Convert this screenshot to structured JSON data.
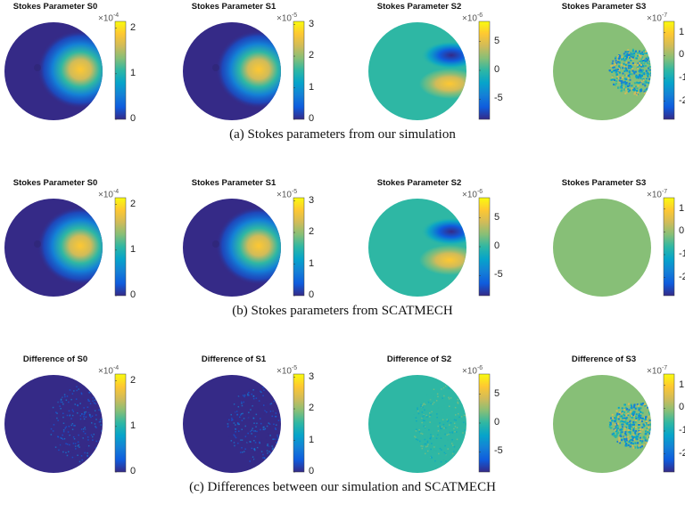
{
  "colormap": [
    "#352a87",
    "#0f5cdd",
    "#1481d6",
    "#06a4ca",
    "#2eb7a4",
    "#87bf77",
    "#d1bb59",
    "#fec832",
    "#f9fb0e"
  ],
  "rows": [
    {
      "caption": "(a)  Stokes parameters from our simulation",
      "panels": [
        {
          "title": "Stokes Parameter S0",
          "exponent": "-4",
          "range": [
            0,
            2.15
          ],
          "ticks": [
            "2",
            "1",
            "0"
          ],
          "tick_values": [
            2,
            1,
            0
          ],
          "pattern": "spot"
        },
        {
          "title": "Stokes Parameter S1",
          "exponent": "-5",
          "range": [
            0,
            3.1
          ],
          "ticks": [
            "3",
            "2",
            "1",
            "0"
          ],
          "tick_values": [
            3,
            2,
            1,
            0
          ],
          "pattern": "spot"
        },
        {
          "title": "Stokes Parameter S2",
          "exponent": "-6",
          "range": [
            -8.5,
            8.5
          ],
          "ticks": [
            "5",
            "0",
            "-5"
          ],
          "tick_values": [
            5,
            0,
            -5
          ],
          "pattern": "dipole"
        },
        {
          "title": "Stokes Parameter S3",
          "exponent": "-7",
          "range": [
            -2.8,
            1.5
          ],
          "ticks": [
            "1",
            "0",
            "-1",
            "-2"
          ],
          "tick_values": [
            1,
            0,
            -1,
            -2
          ],
          "pattern": "noise"
        }
      ]
    },
    {
      "caption": "(b)  Stokes parameters from SCATMECH",
      "panels": [
        {
          "title": "Stokes Parameter S0",
          "exponent": "-4",
          "range": [
            0,
            2.15
          ],
          "ticks": [
            "2",
            "1",
            "0"
          ],
          "tick_values": [
            2,
            1,
            0
          ],
          "pattern": "spot"
        },
        {
          "title": "Stokes Parameter S1",
          "exponent": "-5",
          "range": [
            0,
            3.1
          ],
          "ticks": [
            "3",
            "2",
            "1",
            "0"
          ],
          "tick_values": [
            3,
            2,
            1,
            0
          ],
          "pattern": "spot"
        },
        {
          "title": "Stokes Parameter S2",
          "exponent": "-6",
          "range": [
            -8.5,
            8.5
          ],
          "ticks": [
            "5",
            "0",
            "-5"
          ],
          "tick_values": [
            5,
            0,
            -5
          ],
          "pattern": "dipole"
        },
        {
          "title": "Stokes Parameter S3",
          "exponent": "-7",
          "range": [
            -2.8,
            1.5
          ],
          "ticks": [
            "1",
            "0",
            "-1",
            "-2"
          ],
          "tick_values": [
            1,
            0,
            -1,
            -2
          ],
          "pattern": "flat"
        }
      ]
    },
    {
      "caption": "(c)  Differences between our simulation and SCATMECH",
      "panels": [
        {
          "title": "Difference of S0",
          "exponent": "-4",
          "range": [
            0,
            2.15
          ],
          "ticks": [
            "2",
            "1",
            "0"
          ],
          "tick_values": [
            2,
            1,
            0
          ],
          "pattern": "faint"
        },
        {
          "title": "Difference of S1",
          "exponent": "-5",
          "range": [
            0,
            3.1
          ],
          "ticks": [
            "3",
            "2",
            "1",
            "0"
          ],
          "tick_values": [
            3,
            2,
            1,
            0
          ],
          "pattern": "faint"
        },
        {
          "title": "Difference of S2",
          "exponent": "-6",
          "range": [
            -8.5,
            8.5
          ],
          "ticks": [
            "5",
            "0",
            "-5"
          ],
          "tick_values": [
            5,
            0,
            -5
          ],
          "pattern": "faint"
        },
        {
          "title": "Difference of S3",
          "exponent": "-7",
          "range": [
            -2.8,
            1.5
          ],
          "ticks": [
            "1",
            "0",
            "-1",
            "-2"
          ],
          "tick_values": [
            1,
            0,
            -1,
            -2
          ],
          "pattern": "noise"
        }
      ]
    }
  ]
}
